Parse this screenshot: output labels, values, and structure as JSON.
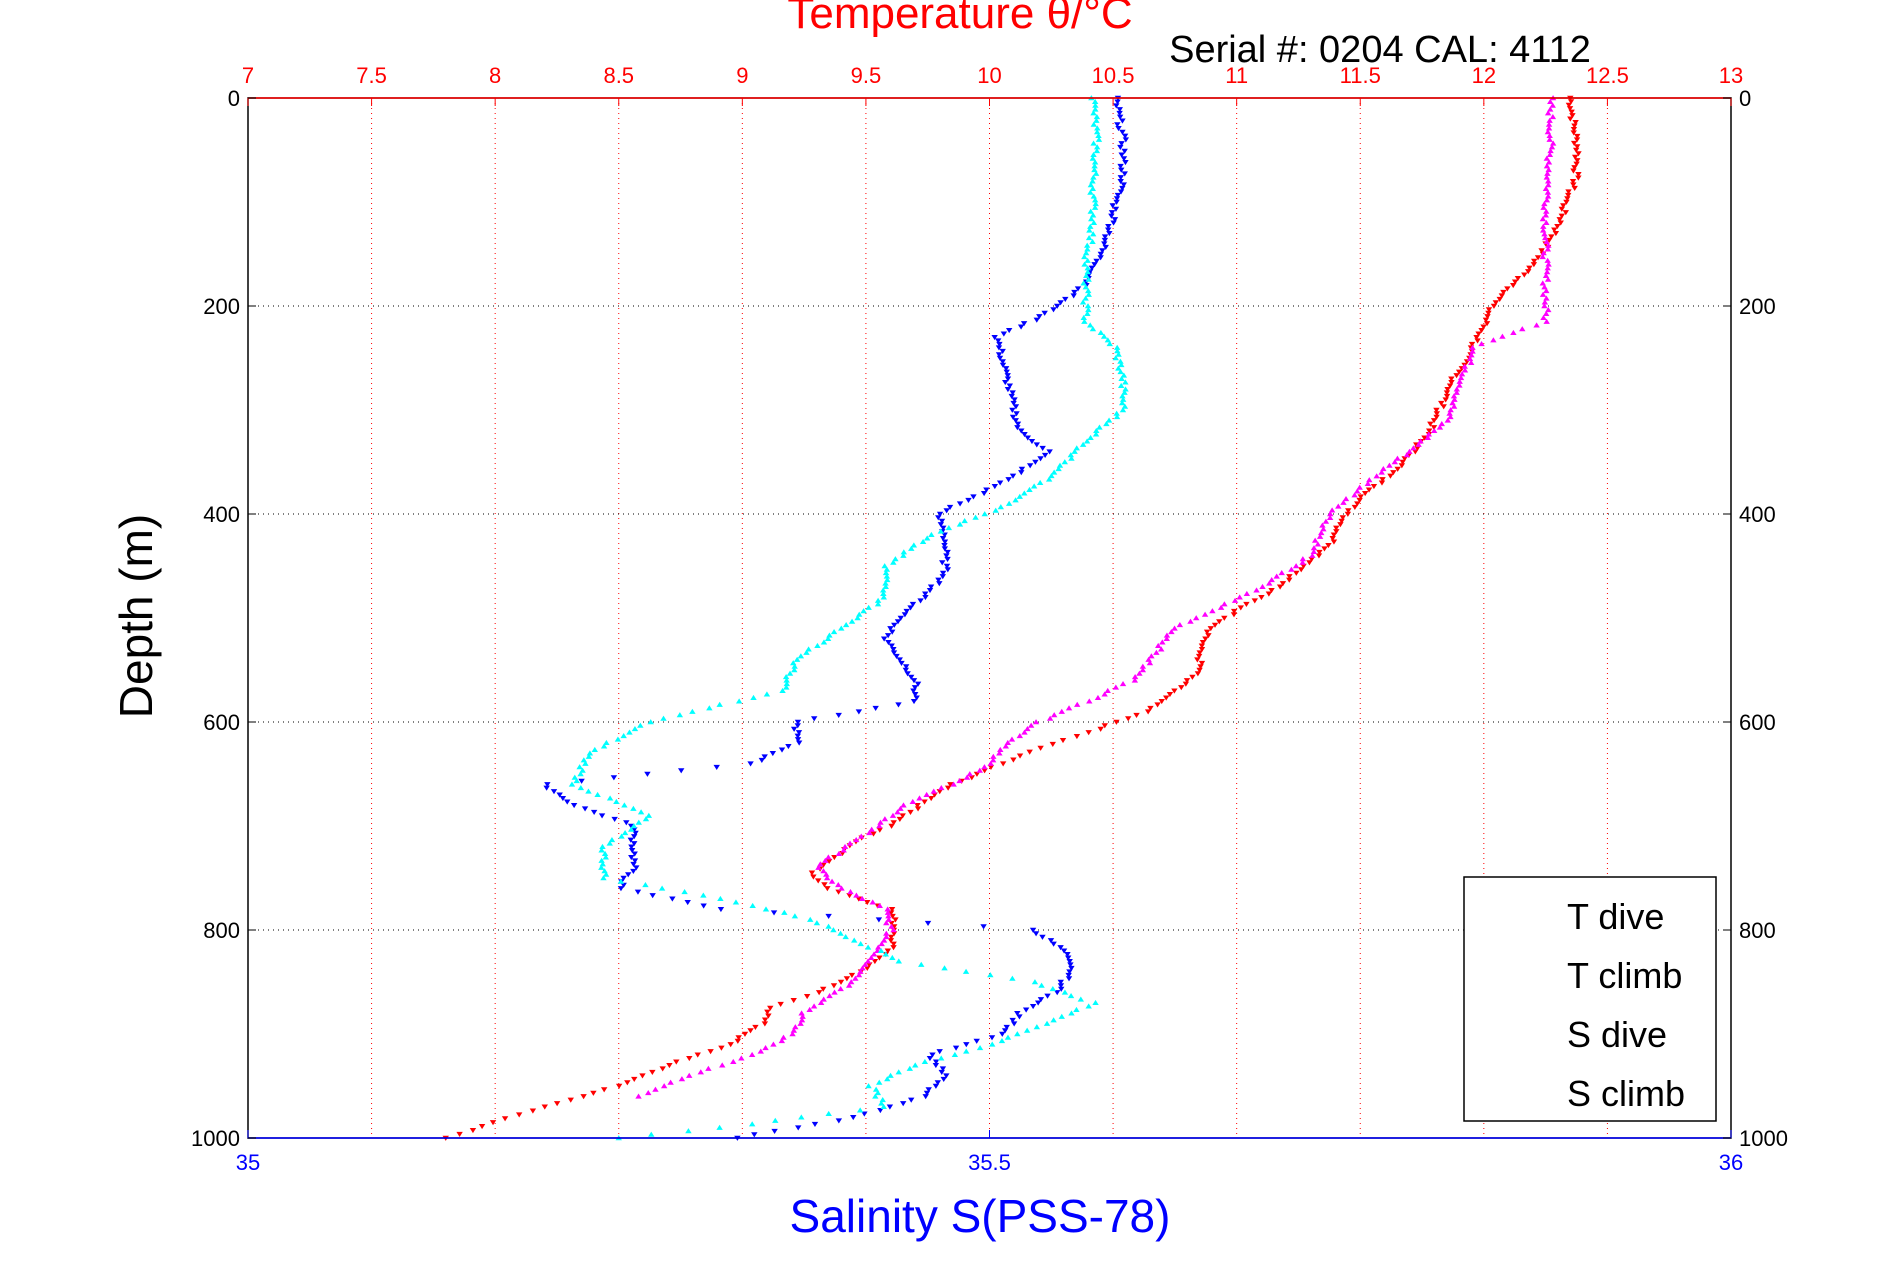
{
  "chart_data": {
    "type": "scatter",
    "title": "Temperature θ/°C",
    "subtitle": "Serial #: 0204  CAL: 4112",
    "xlabel_top": "Temperature θ/°C",
    "xlabel_bottom": "Salinity S(PSS-78)",
    "ylabel": "Depth (m)",
    "xlim_top": [
      7,
      13
    ],
    "xlim_bottom": [
      35,
      36
    ],
    "ylim": [
      0,
      1000
    ],
    "y_reversed": true,
    "grid": true,
    "legend_position": "bottom-right",
    "xticks_top": [
      "7",
      "7.5",
      "8",
      "8.5",
      "9",
      "9.5",
      "10",
      "10.5",
      "11",
      "11.5",
      "12",
      "12.5",
      "13"
    ],
    "xticks_bottom": [
      "35",
      "35.5",
      "36"
    ],
    "yticks": [
      "0",
      "200",
      "400",
      "600",
      "800",
      "1000"
    ],
    "colors": {
      "T dive": "#ff0000",
      "T climb": "#ff00ff",
      "S dive": "#0000ff",
      "S climb": "#00ffff",
      "top_axis": "#ff0000",
      "bottom_axis": "#0000ff",
      "grid_top": "#ff0000",
      "grid_y": "#000000"
    },
    "series": [
      {
        "name": "T dive",
        "axis": "top",
        "marker": "triangle-down",
        "profile": [
          [
            0,
            12.35
          ],
          [
            20,
            12.36
          ],
          [
            50,
            12.38
          ],
          [
            80,
            12.37
          ],
          [
            100,
            12.33
          ],
          [
            120,
            12.31
          ],
          [
            140,
            12.26
          ],
          [
            160,
            12.2
          ],
          [
            180,
            12.12
          ],
          [
            200,
            12.03
          ],
          [
            220,
            12.0
          ],
          [
            250,
            11.93
          ],
          [
            270,
            11.88
          ],
          [
            300,
            11.82
          ],
          [
            320,
            11.78
          ],
          [
            350,
            11.68
          ],
          [
            370,
            11.58
          ],
          [
            390,
            11.48
          ],
          [
            410,
            11.42
          ],
          [
            430,
            11.38
          ],
          [
            450,
            11.28
          ],
          [
            470,
            11.17
          ],
          [
            490,
            11.02
          ],
          [
            510,
            10.9
          ],
          [
            530,
            10.85
          ],
          [
            550,
            10.85
          ],
          [
            570,
            10.75
          ],
          [
            590,
            10.63
          ],
          [
            610,
            10.4
          ],
          [
            625,
            10.2
          ],
          [
            640,
            10.05
          ],
          [
            660,
            9.85
          ],
          [
            680,
            9.72
          ],
          [
            700,
            9.6
          ],
          [
            715,
            9.45
          ],
          [
            730,
            9.38
          ],
          [
            745,
            9.28
          ],
          [
            760,
            9.35
          ],
          [
            780,
            9.6
          ],
          [
            800,
            9.62
          ],
          [
            820,
            9.6
          ],
          [
            840,
            9.48
          ],
          [
            860,
            9.3
          ],
          [
            875,
            9.12
          ],
          [
            890,
            9.08
          ],
          [
            910,
            8.95
          ],
          [
            930,
            8.7
          ],
          [
            950,
            8.5
          ],
          [
            970,
            8.2
          ],
          [
            985,
            8.0
          ],
          [
            1000,
            7.8
          ]
        ]
      },
      {
        "name": "T climb",
        "axis": "top",
        "marker": "triangle-up",
        "profile": [
          [
            0,
            12.27
          ],
          [
            40,
            12.27
          ],
          [
            80,
            12.26
          ],
          [
            120,
            12.25
          ],
          [
            160,
            12.25
          ],
          [
            200,
            12.25
          ],
          [
            215,
            12.25
          ],
          [
            240,
            11.96
          ],
          [
            280,
            11.9
          ],
          [
            310,
            11.85
          ],
          [
            340,
            11.7
          ],
          [
            360,
            11.58
          ],
          [
            400,
            11.38
          ],
          [
            440,
            11.3
          ],
          [
            470,
            11.1
          ],
          [
            490,
            10.93
          ],
          [
            510,
            10.75
          ],
          [
            540,
            10.65
          ],
          [
            560,
            10.58
          ],
          [
            580,
            10.4
          ],
          [
            600,
            10.2
          ],
          [
            620,
            10.08
          ],
          [
            640,
            10.0
          ],
          [
            660,
            9.85
          ],
          [
            680,
            9.65
          ],
          [
            700,
            9.55
          ],
          [
            720,
            9.42
          ],
          [
            740,
            9.3
          ],
          [
            760,
            9.4
          ],
          [
            780,
            9.58
          ],
          [
            800,
            9.6
          ],
          [
            820,
            9.55
          ],
          [
            850,
            9.45
          ],
          [
            880,
            9.25
          ],
          [
            900,
            9.2
          ],
          [
            920,
            9.05
          ],
          [
            940,
            8.78
          ],
          [
            960,
            8.58
          ]
        ]
      },
      {
        "name": "S dive",
        "axis": "bottom",
        "marker": "triangle-down",
        "profile": [
          [
            0,
            35.585
          ],
          [
            40,
            35.59
          ],
          [
            80,
            35.59
          ],
          [
            100,
            35.585
          ],
          [
            120,
            35.583
          ],
          [
            150,
            35.575
          ],
          [
            180,
            35.565
          ],
          [
            210,
            35.535
          ],
          [
            230,
            35.505
          ],
          [
            260,
            35.51
          ],
          [
            290,
            35.515
          ],
          [
            320,
            35.52
          ],
          [
            340,
            35.54
          ],
          [
            360,
            35.52
          ],
          [
            380,
            35.495
          ],
          [
            400,
            35.465
          ],
          [
            420,
            35.47
          ],
          [
            440,
            35.47
          ],
          [
            460,
            35.47
          ],
          [
            480,
            35.455
          ],
          [
            500,
            35.44
          ],
          [
            520,
            35.43
          ],
          [
            540,
            35.44
          ],
          [
            560,
            35.45
          ],
          [
            580,
            35.45
          ],
          [
            600,
            35.37
          ],
          [
            620,
            35.37
          ],
          [
            640,
            35.34
          ],
          [
            660,
            35.2
          ],
          [
            680,
            35.22
          ],
          [
            700,
            35.26
          ],
          [
            720,
            35.26
          ],
          [
            740,
            35.26
          ],
          [
            760,
            35.25
          ],
          [
            780,
            35.32
          ],
          [
            800,
            35.53
          ],
          [
            820,
            35.55
          ],
          [
            840,
            35.555
          ],
          [
            860,
            35.545
          ],
          [
            880,
            35.52
          ],
          [
            900,
            35.51
          ],
          [
            920,
            35.46
          ],
          [
            940,
            35.47
          ],
          [
            960,
            35.455
          ],
          [
            980,
            35.41
          ],
          [
            1000,
            35.33
          ]
        ]
      },
      {
        "name": "S climb",
        "axis": "bottom",
        "marker": "triangle-up",
        "profile": [
          [
            0,
            35.57
          ],
          [
            40,
            35.572
          ],
          [
            80,
            35.57
          ],
          [
            120,
            35.57
          ],
          [
            160,
            35.565
          ],
          [
            200,
            35.565
          ],
          [
            215,
            35.565
          ],
          [
            240,
            35.585
          ],
          [
            270,
            35.59
          ],
          [
            300,
            35.59
          ],
          [
            330,
            35.565
          ],
          [
            360,
            35.545
          ],
          [
            390,
            35.515
          ],
          [
            420,
            35.46
          ],
          [
            450,
            35.43
          ],
          [
            480,
            35.43
          ],
          [
            510,
            35.4
          ],
          [
            540,
            35.37
          ],
          [
            570,
            35.36
          ],
          [
            600,
            35.27
          ],
          [
            630,
            35.23
          ],
          [
            660,
            35.22
          ],
          [
            690,
            35.27
          ],
          [
            720,
            35.24
          ],
          [
            750,
            35.24
          ],
          [
            770,
            35.32
          ],
          [
            790,
            35.38
          ],
          [
            810,
            35.41
          ],
          [
            830,
            35.44
          ],
          [
            850,
            35.53
          ],
          [
            870,
            35.57
          ],
          [
            890,
            35.54
          ],
          [
            910,
            35.5
          ],
          [
            930,
            35.45
          ],
          [
            950,
            35.42
          ],
          [
            970,
            35.43
          ],
          [
            990,
            35.32
          ],
          [
            1000,
            35.25
          ]
        ]
      }
    ],
    "legend": [
      "T dive",
      "T climb",
      "S dive",
      "S climb"
    ]
  }
}
